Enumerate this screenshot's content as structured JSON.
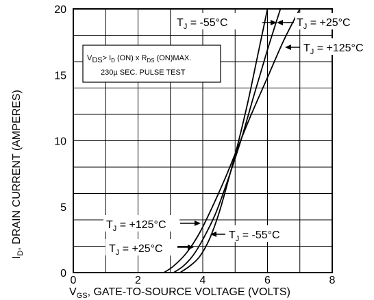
{
  "chart_data": {
    "type": "line",
    "xlabel": {
      "main": "V",
      "sub": "GS",
      "rest": ", GATE-TO-SOURCE VOLTAGE (VOLTS)"
    },
    "ylabel": {
      "main": "I",
      "sub": "D",
      "rest": ", DRAIN CURRENT (AMPERES)"
    },
    "xlim": [
      0,
      8
    ],
    "ylim": [
      0,
      20
    ],
    "x_ticks": [
      "0",
      "2",
      "4",
      "6",
      "8"
    ],
    "y_ticks": [
      "0",
      "5",
      "10",
      "15",
      "20"
    ],
    "grid": true,
    "series": [
      {
        "name": "T_J = -55°C",
        "curve": [
          [
            3.3,
            0
          ],
          [
            3.6,
            0.5
          ],
          [
            3.9,
            1.2
          ],
          [
            4.2,
            2.5
          ],
          [
            4.5,
            4.5
          ],
          [
            4.8,
            7.1
          ],
          [
            5.1,
            9.9
          ],
          [
            5.4,
            13.0
          ],
          [
            5.7,
            16.5
          ],
          [
            6.0,
            20.0
          ]
        ]
      },
      {
        "name": "T_J = +25°C",
        "curve": [
          [
            3.1,
            0
          ],
          [
            3.4,
            0.5
          ],
          [
            3.7,
            1.3
          ],
          [
            4.0,
            2.5
          ],
          [
            4.4,
            4.5
          ],
          [
            4.8,
            7.2
          ],
          [
            5.2,
            10.2
          ],
          [
            5.6,
            13.6
          ],
          [
            6.0,
            16.9
          ],
          [
            6.4,
            20.0
          ]
        ]
      },
      {
        "name": "T_J = +125°C",
        "curve": [
          [
            2.8,
            0
          ],
          [
            3.1,
            0.5
          ],
          [
            3.5,
            1.5
          ],
          [
            3.9,
            3.0
          ],
          [
            4.3,
            5.0
          ],
          [
            4.7,
            7.2
          ],
          [
            5.1,
            9.6
          ],
          [
            5.5,
            12.0
          ],
          [
            6.0,
            14.8
          ],
          [
            6.5,
            17.6
          ],
          [
            7.0,
            20.0
          ]
        ]
      }
    ],
    "annotations": {
      "t55_top": {
        "T": "T",
        "sub": "J",
        "rest": " = -55°C"
      },
      "t25_top": {
        "T": "T",
        "sub": "J",
        "rest": " = +25°C"
      },
      "t125_top": {
        "T": "T",
        "sub": "J",
        "rest": " = +125°C"
      },
      "t125_bot": {
        "T": "T",
        "sub": "J",
        "rest": " = +125°C"
      },
      "t55_bot": {
        "T": "T",
        "sub": "J",
        "rest": " = -55°C"
      },
      "t25_bot": {
        "T": "T",
        "sub": "J",
        "rest": " = +25°C"
      }
    },
    "condition_box": {
      "line1": {
        "v": "V",
        "vsub": "DS",
        "gt": "> I",
        "isub": "D",
        "on": " (ON) x  R",
        "rsub": "DS",
        "rest": " (ON)MAX."
      },
      "line2": "230µ SEC. PULSE TEST"
    }
  }
}
